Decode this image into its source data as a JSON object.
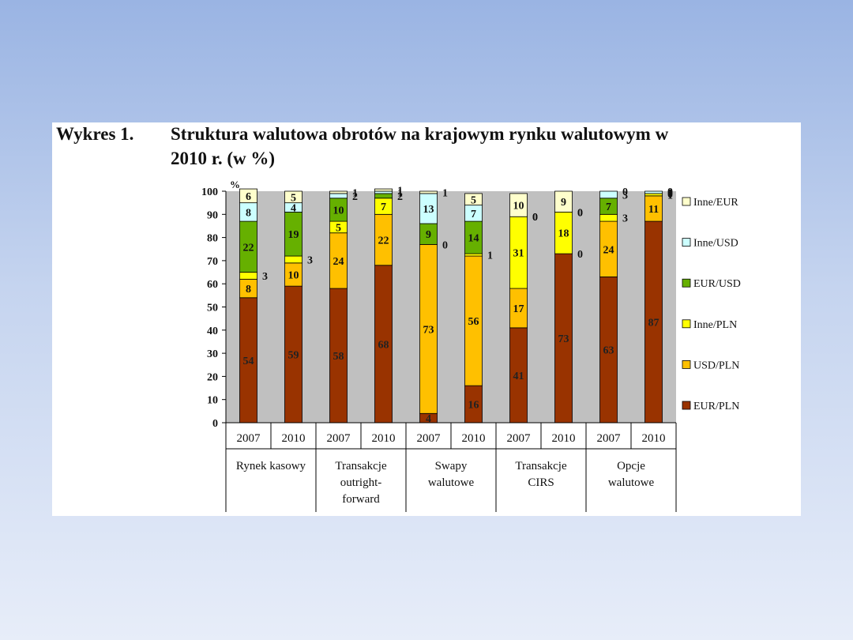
{
  "caption": {
    "label": "Wykres 1.",
    "line1": "Struktura walutowa obrotów na krajowym rynku walutowym w",
    "line2": "2010 r. (w %)"
  },
  "chart_data": {
    "type": "bar",
    "stacked": true,
    "title": "Struktura walutowa obrotów na krajowym rynku walutowym w 2010 r. (w %)",
    "ylabel": "%",
    "ylim": [
      0,
      100
    ],
    "yticks": [
      0,
      10,
      20,
      30,
      40,
      50,
      60,
      70,
      80,
      90,
      100
    ],
    "grid": false,
    "legend_position": "right",
    "groups": [
      "Rynek kasowy",
      "Transakcje outright-forward",
      "Swapy walutowe",
      "Transakcje CIRS",
      "Opcje walutowe"
    ],
    "group_label_lines": [
      [
        "Rynek kasowy"
      ],
      [
        "Transakcje",
        "outright-",
        "forward"
      ],
      [
        "Swapy",
        "walutowe"
      ],
      [
        "Transakcje",
        "CIRS"
      ],
      [
        "Opcje",
        "walutowe"
      ]
    ],
    "categories": [
      "2007",
      "2010",
      "2007",
      "2010",
      "2007",
      "2010",
      "2007",
      "2010",
      "2007",
      "2010"
    ],
    "series": [
      {
        "name": "EUR/PLN",
        "color": "#993300",
        "values": [
          54,
          59,
          58,
          68,
          4,
          16,
          41,
          73,
          63,
          87
        ]
      },
      {
        "name": "USD/PLN",
        "color": "#ffc000",
        "values": [
          8,
          10,
          24,
          22,
          73,
          56,
          17,
          0,
          24,
          11
        ]
      },
      {
        "name": "Inne/PLN",
        "color": "#ffff00",
        "values": [
          3,
          3,
          5,
          7,
          0,
          1,
          31,
          18,
          3,
          1
        ]
      },
      {
        "name": "EUR/USD",
        "color": "#66b000",
        "values": [
          22,
          19,
          10,
          2,
          9,
          14,
          0,
          0,
          7,
          0
        ]
      },
      {
        "name": "Inne/USD",
        "color": "#ccffff",
        "values": [
          8,
          4,
          2,
          1,
          13,
          7,
          0,
          0,
          3,
          1
        ]
      },
      {
        "name": "Inne/EUR",
        "color": "#ffffcc",
        "values": [
          6,
          5,
          1,
          1,
          1,
          5,
          10,
          9,
          0,
          0
        ]
      }
    ]
  }
}
